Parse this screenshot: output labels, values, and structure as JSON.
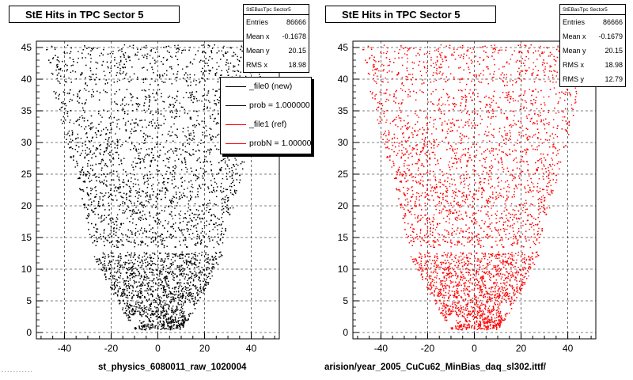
{
  "chart_data": [
    {
      "type": "scatter",
      "title": "StE Hits in TPC Sector 5",
      "xlabel": "st_physics_6080011_raw_1020004",
      "ylabel": "",
      "xlim": [
        -52,
        52
      ],
      "ylim": [
        -1,
        46
      ],
      "xticks": [
        -40,
        -20,
        0,
        20,
        40
      ],
      "yticks": [
        0,
        5,
        10,
        15,
        20,
        25,
        30,
        35,
        40,
        45
      ],
      "grid": true,
      "color": "#000000",
      "stats": {
        "name": "StEBasTpc Sector5",
        "rows": [
          {
            "label": "Entries",
            "value": "86666"
          },
          {
            "label": "Mean x",
            "value": "-0.1678"
          },
          {
            "label": "Mean y",
            "value": "20.15"
          },
          {
            "label": "RMS x",
            "value": "18.98"
          }
        ]
      },
      "legend": {
        "placement": "top-right",
        "entries": [
          {
            "label": "_file0 (new)",
            "color": "#000000"
          },
          {
            "label": "prob = 1.000000",
            "color": "#000000"
          },
          {
            "label": "_file1 (ref)",
            "color": "#ff0000"
          },
          {
            "label": "probN = 1.000000",
            "color": "#ff0000"
          }
        ]
      }
    },
    {
      "type": "scatter",
      "title": "StE Hits in TPC Sector 5",
      "xlabel": "arision/year_2005_CuCu62_MinBias_daq_sl302.ittf/",
      "ylabel": "",
      "xlim": [
        -52,
        52
      ],
      "ylim": [
        -1,
        46
      ],
      "xticks": [
        -40,
        -20,
        0,
        20,
        40
      ],
      "yticks": [
        0,
        5,
        10,
        15,
        20,
        25,
        30,
        35,
        40,
        45
      ],
      "grid": true,
      "color": "#ff0000",
      "stats": {
        "name": "StEBasTpc Sector5",
        "rows": [
          {
            "label": "Entries",
            "value": "86666"
          },
          {
            "label": "Mean x",
            "value": "-0.1679"
          },
          {
            "label": "Mean y",
            "value": "20.15"
          },
          {
            "label": "RMS x",
            "value": "18.98"
          },
          {
            "label": "RMS y",
            "value": "12.79"
          }
        ]
      }
    }
  ],
  "footer": "- - - - - - - - - - -"
}
